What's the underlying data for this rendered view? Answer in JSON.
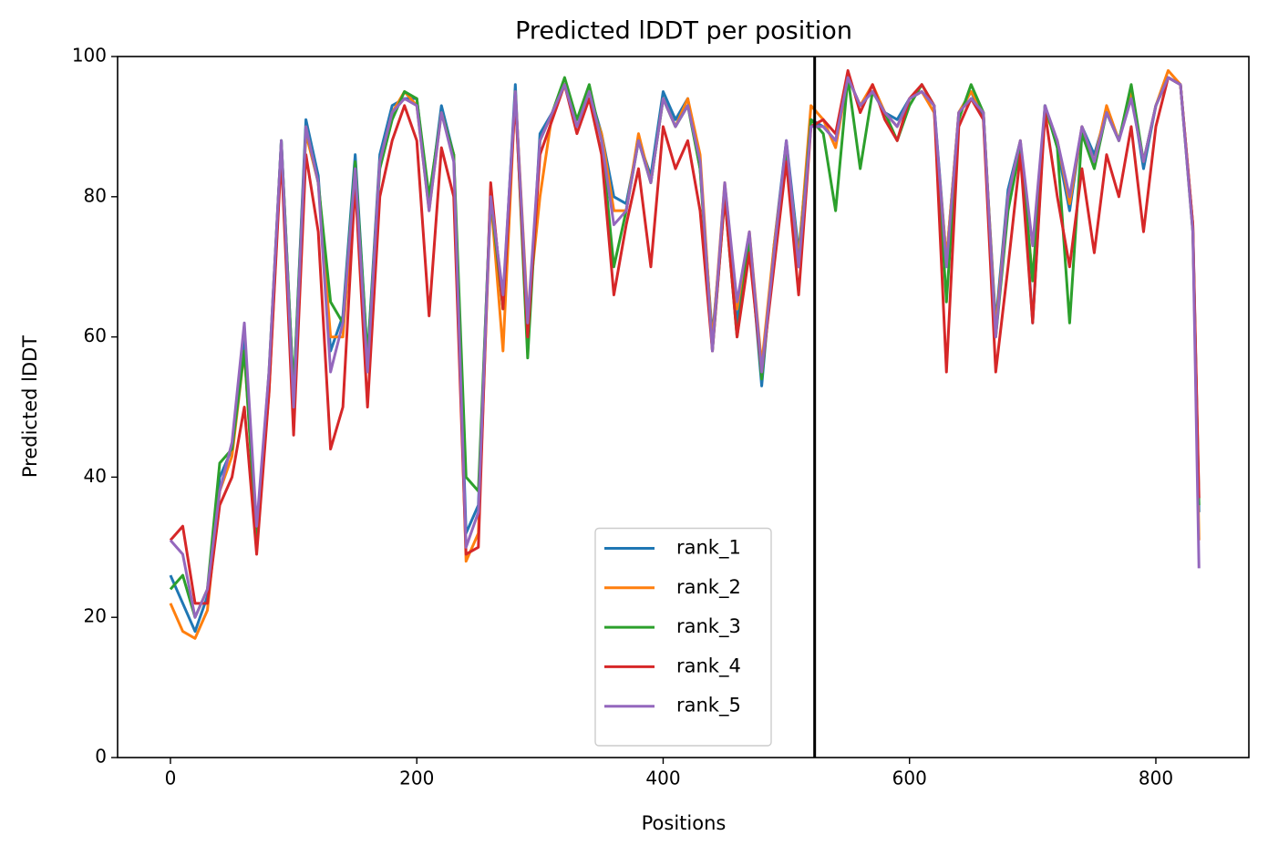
{
  "chart_data": {
    "type": "line",
    "title": "Predicted lDDT per position",
    "xlabel": "Positions",
    "ylabel": "Predicted lDDT",
    "xlim": [
      -42.9,
      875.5
    ],
    "ylim": [
      0,
      100
    ],
    "xticks": [
      0,
      200,
      400,
      600,
      800
    ],
    "yticks": [
      0,
      20,
      40,
      60,
      80,
      100
    ],
    "grid": false,
    "legend": "lower center",
    "vline": 523,
    "vline_color": "#000000",
    "x": [
      0,
      10,
      20,
      30,
      40,
      50,
      60,
      70,
      80,
      90,
      100,
      110,
      120,
      130,
      140,
      150,
      160,
      170,
      180,
      190,
      200,
      210,
      220,
      230,
      240,
      250,
      260,
      270,
      280,
      290,
      300,
      310,
      320,
      330,
      340,
      350,
      360,
      370,
      380,
      390,
      400,
      410,
      420,
      430,
      440,
      450,
      460,
      470,
      480,
      490,
      500,
      510,
      520,
      530,
      540,
      550,
      560,
      570,
      580,
      590,
      600,
      610,
      620,
      630,
      640,
      650,
      660,
      670,
      680,
      690,
      700,
      710,
      720,
      730,
      740,
      750,
      760,
      770,
      780,
      790,
      800,
      810,
      820,
      830,
      835
    ],
    "series": [
      {
        "name": "rank_1",
        "color": "#1f77b4",
        "values": [
          26,
          22,
          18,
          23,
          40,
          44,
          60,
          32,
          54,
          88,
          52,
          91,
          83,
          58,
          63,
          86,
          57,
          86,
          93,
          94,
          94,
          79,
          93,
          86,
          32,
          36,
          81,
          65,
          96,
          58,
          89,
          92,
          96,
          91,
          95,
          89,
          80,
          79,
          88,
          83,
          95,
          91,
          94,
          84,
          60,
          80,
          62,
          74,
          53,
          73,
          88,
          72,
          91,
          90,
          88,
          97,
          93,
          95,
          92,
          91,
          94,
          95,
          93,
          71,
          92,
          95,
          91,
          62,
          81,
          88,
          62,
          93,
          87,
          78,
          90,
          86,
          92,
          88,
          95,
          84,
          93,
          97,
          96,
          76,
          35
        ]
      },
      {
        "name": "rank_2",
        "color": "#ff7f0e",
        "values": [
          22,
          18,
          17,
          21,
          38,
          43,
          58,
          31,
          52,
          87,
          50,
          89,
          82,
          60,
          60,
          83,
          56,
          85,
          92,
          95,
          93,
          78,
          92,
          86,
          28,
          32,
          80,
          58,
          95,
          63,
          80,
          92,
          96,
          90,
          94,
          89,
          78,
          78,
          89,
          82,
          94,
          90,
          94,
          86,
          59,
          82,
          64,
          75,
          56,
          73,
          87,
          71,
          93,
          91,
          87,
          97,
          93,
          96,
          92,
          90,
          94,
          95,
          92,
          71,
          92,
          95,
          92,
          61,
          80,
          88,
          68,
          92,
          88,
          79,
          90,
          85,
          93,
          88,
          95,
          85,
          93,
          98,
          96,
          76,
          31
        ]
      },
      {
        "name": "rank_3",
        "color": "#2ca02c",
        "values": [
          24,
          26,
          20,
          24,
          42,
          44,
          58,
          31,
          55,
          88,
          52,
          90,
          82,
          65,
          62,
          85,
          57,
          84,
          91,
          95,
          94,
          80,
          92,
          86,
          40,
          38,
          80,
          64,
          95,
          57,
          88,
          92,
          97,
          91,
          96,
          88,
          70,
          78,
          88,
          82,
          94,
          90,
          93,
          84,
          58,
          80,
          60,
          74,
          54,
          72,
          87,
          70,
          91,
          89,
          78,
          97,
          84,
          95,
          92,
          88,
          93,
          96,
          93,
          65,
          91,
          96,
          92,
          60,
          78,
          87,
          68,
          93,
          87,
          62,
          89,
          84,
          92,
          88,
          96,
          85,
          93,
          97,
          96,
          75,
          36
        ]
      },
      {
        "name": "rank_4",
        "color": "#d62728",
        "values": [
          31,
          33,
          22,
          22,
          36,
          40,
          50,
          29,
          52,
          86,
          46,
          86,
          75,
          44,
          50,
          82,
          50,
          80,
          88,
          93,
          88,
          63,
          87,
          80,
          29,
          30,
          82,
          64,
          94,
          60,
          86,
          91,
          96,
          89,
          94,
          86,
          66,
          76,
          84,
          70,
          90,
          84,
          88,
          78,
          58,
          80,
          60,
          72,
          55,
          70,
          85,
          66,
          90,
          91,
          89,
          98,
          92,
          96,
          91,
          88,
          94,
          96,
          93,
          55,
          90,
          94,
          91,
          55,
          70,
          86,
          62,
          92,
          80,
          70,
          84,
          72,
          86,
          80,
          90,
          75,
          90,
          97,
          96,
          76,
          37
        ]
      },
      {
        "name": "rank_5",
        "color": "#9467bd",
        "values": [
          31,
          29,
          20,
          24,
          38,
          45,
          62,
          33,
          55,
          88,
          50,
          90,
          82,
          55,
          62,
          84,
          55,
          85,
          92,
          94,
          93,
          78,
          92,
          85,
          30,
          35,
          80,
          66,
          95,
          62,
          88,
          92,
          96,
          90,
          95,
          88,
          76,
          78,
          88,
          82,
          94,
          90,
          93,
          85,
          58,
          82,
          65,
          75,
          55,
          72,
          88,
          70,
          90,
          90,
          88,
          97,
          93,
          95,
          92,
          90,
          94,
          95,
          93,
          70,
          92,
          94,
          92,
          60,
          80,
          88,
          73,
          93,
          88,
          80,
          90,
          85,
          92,
          88,
          94,
          85,
          93,
          97,
          96,
          75,
          27
        ]
      }
    ]
  }
}
